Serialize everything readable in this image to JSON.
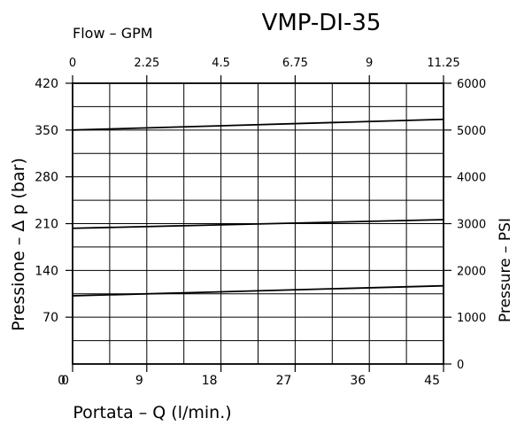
{
  "chart_data": {
    "type": "line",
    "title": "VMP-DI-35",
    "top_axis": {
      "label": "Flow  –  GPM",
      "ticks": [
        "0",
        "2.25",
        "4.5",
        "6.75",
        "9",
        "11.25"
      ],
      "range": [
        0,
        11.25
      ]
    },
    "x_axis": {
      "label": "Portata  –  Q  (l/min.)",
      "ticks": [
        "0",
        "9",
        "18",
        "27",
        "36",
        "45"
      ],
      "range": [
        0,
        45
      ]
    },
    "y_axis": {
      "label": "Pressione  –  Δ p  (bar)",
      "ticks": [
        "70",
        "140",
        "210",
        "280",
        "350",
        "420"
      ],
      "range": [
        0,
        420
      ]
    },
    "right_axis": {
      "label": "Pressure  –  PSI",
      "ticks": [
        "0",
        "1000",
        "2000",
        "3000",
        "4000",
        "5000",
        "6000"
      ],
      "range": [
        0,
        6000
      ]
    },
    "grid": true,
    "series": [
      {
        "x": [
          0,
          45
        ],
        "y": [
          350,
          366
        ]
      },
      {
        "x": [
          0,
          45
        ],
        "y": [
          203,
          216
        ]
      },
      {
        "x": [
          0,
          45
        ],
        "y": [
          102,
          117
        ]
      }
    ]
  }
}
